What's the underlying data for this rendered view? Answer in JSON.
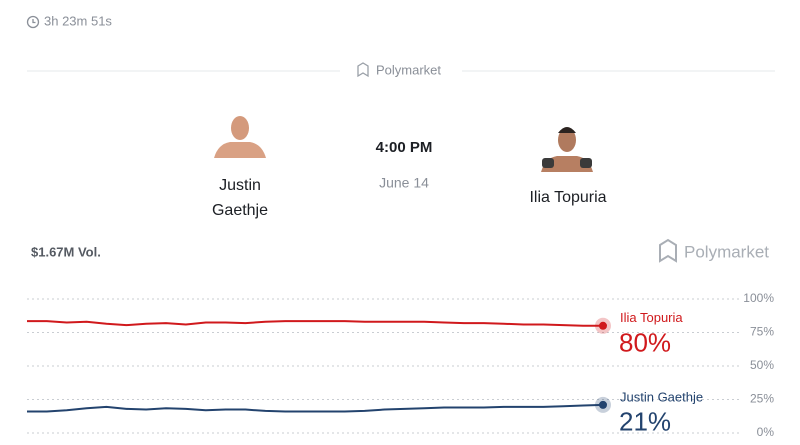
{
  "header": {
    "timer": "3h 23m 51s",
    "brand": "Polymarket"
  },
  "matchup": {
    "fighters": [
      {
        "name_lines": [
          "Justin",
          "Gaethje"
        ]
      },
      {
        "name_lines": [
          "Ilia Topuria"
        ]
      }
    ],
    "time": "4:00 PM",
    "date": "June 14"
  },
  "volume": "$1.67M Vol.",
  "brand": "Polymarket",
  "chart_data": {
    "type": "line",
    "categories": [
      null,
      null,
      null,
      null,
      null,
      null,
      null,
      null,
      null,
      null,
      null,
      null,
      null,
      null,
      null,
      null,
      null,
      null,
      null,
      null,
      null,
      null,
      null,
      null,
      null,
      null,
      null,
      null,
      null,
      null
    ],
    "series": [
      {
        "name": "Ilia Topuria",
        "color": "#d0191c",
        "values": [
          83.5,
          83.5,
          82.5,
          83,
          81.5,
          80.5,
          81.5,
          82,
          81,
          82.5,
          82.5,
          82,
          83,
          83.5,
          83.5,
          83.5,
          83.5,
          83,
          83,
          83,
          83,
          82.5,
          82,
          82,
          81.5,
          81,
          81,
          80.5,
          80,
          80
        ],
        "value_labels": [
          null,
          null,
          null,
          null,
          null,
          null,
          null,
          null,
          null,
          null,
          null,
          null,
          null,
          null,
          null,
          null,
          null,
          null,
          null,
          null,
          null,
          null,
          null,
          null,
          null,
          null,
          null,
          null,
          null,
          "80%"
        ]
      },
      {
        "name": "Justin Gaethje",
        "color": "#23436e",
        "values": [
          16,
          16,
          17,
          18.5,
          19.5,
          18,
          17.5,
          18.5,
          18,
          17,
          17.5,
          17.5,
          16.5,
          16,
          16,
          16,
          16,
          16.5,
          17.5,
          18,
          18.5,
          19,
          19,
          19,
          19.5,
          19.5,
          19.5,
          20,
          20.5,
          21
        ],
        "value_labels": [
          null,
          null,
          null,
          null,
          null,
          null,
          null,
          null,
          null,
          null,
          null,
          null,
          null,
          null,
          null,
          null,
          null,
          null,
          null,
          null,
          null,
          null,
          null,
          null,
          null,
          null,
          null,
          null,
          null,
          "21%"
        ]
      }
    ],
    "ylim": [
      0,
      100
    ],
    "yticks": [
      {
        "value": 0,
        "label": "0%"
      },
      {
        "value": 25,
        "label": "25%"
      },
      {
        "value": 50,
        "label": "50%"
      },
      {
        "value": 75,
        "label": "75%"
      },
      {
        "value": 100,
        "label": "100%"
      }
    ],
    "grid": true
  }
}
